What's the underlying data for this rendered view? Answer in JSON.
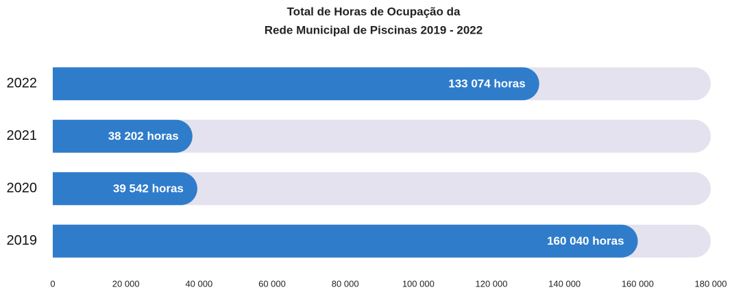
{
  "chart_data": {
    "type": "bar",
    "orientation": "horizontal",
    "title": [
      "Total de Horas de Ocupação da",
      "Rede Municipal de Piscinas 2019 - 2022"
    ],
    "categories": [
      "2022",
      "2021",
      "2020",
      "2019"
    ],
    "values": [
      133074,
      38202,
      39542,
      160040
    ],
    "value_labels": [
      "133 074 horas",
      "38 202 horas",
      "39 542 horas",
      "160 040 horas"
    ],
    "color": "#2f7ccb",
    "xlim": [
      0,
      180000
    ],
    "xticks": [
      0,
      {
        "value": 20000,
        "label": "20 000"
      },
      {
        "value": 40000,
        "label": "40 000"
      },
      {
        "value": 60000,
        "label": "60 000"
      },
      {
        "value": 80000,
        "label": "80 000"
      },
      {
        "value": 100000,
        "label": "100 000"
      },
      {
        "value": 120000,
        "label": "120 000"
      },
      {
        "value": 140000,
        "label": "140 000"
      },
      {
        "value": 160000,
        "label": "160 000"
      },
      {
        "value": 180000,
        "label": "180 000"
      }
    ],
    "grid": false
  }
}
